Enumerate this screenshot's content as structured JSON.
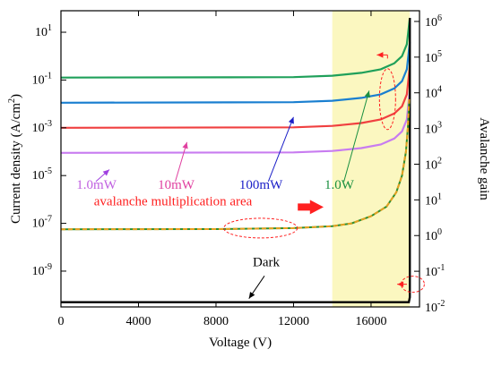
{
  "chart_data": {
    "type": "line",
    "xlabel": "Voltage (V)",
    "ylabel_left": "Current density (A/cm",
    "ylabel_left_sup": "2",
    "ylabel_left_close": ")",
    "ylabel_right": "Avalanche gain",
    "xlim": [
      0,
      18500
    ],
    "ylim_left_exp": [
      -10.5,
      1.9
    ],
    "ylim_right_exp": [
      -2,
      6.3
    ],
    "yscale": "log",
    "grid": false,
    "x_ticks": [
      0,
      4000,
      8000,
      12000,
      16000
    ],
    "x_tick_labels": [
      "0",
      "4000",
      "8000",
      "12000",
      "16000"
    ],
    "y_left_ticks": [
      {
        "base": "10",
        "exp": "1",
        "v": 1
      },
      {
        "base": "10",
        "exp": "-1",
        "v": -1
      },
      {
        "base": "10",
        "exp": "-3",
        "v": -3
      },
      {
        "base": "10",
        "exp": "-5",
        "v": -5
      },
      {
        "base": "10",
        "exp": "-7",
        "v": -7
      },
      {
        "base": "10",
        "exp": "-9",
        "v": -9
      }
    ],
    "y_right_ticks": [
      {
        "base": "10",
        "exp": "6",
        "v": 6
      },
      {
        "base": "10",
        "exp": "5",
        "v": 5
      },
      {
        "base": "10",
        "exp": "4",
        "v": 4
      },
      {
        "base": "10",
        "exp": "3",
        "v": 3
      },
      {
        "base": "10",
        "exp": "2",
        "v": 2
      },
      {
        "base": "10",
        "exp": "1",
        "v": 1
      },
      {
        "base": "10",
        "exp": "0",
        "v": 0
      },
      {
        "base": "10",
        "exp": "-1",
        "v": -1
      },
      {
        "base": "10",
        "exp": "-2",
        "v": -2
      }
    ],
    "shaded_region": {
      "x": [
        14000,
        18000
      ],
      "color": "#fbf7c0"
    },
    "series": [
      {
        "name": "1.0W",
        "color": "#1fa05a",
        "x": [
          0,
          12000,
          14000,
          15500,
          16500,
          17200,
          17600,
          17850,
          18000
        ],
        "y_exp": [
          -0.9,
          -0.88,
          -0.82,
          -0.7,
          -0.55,
          -0.3,
          0.0,
          0.5,
          1.6
        ]
      },
      {
        "name": "100mW",
        "color": "#1a7fd0",
        "x": [
          0,
          12000,
          14000,
          15500,
          16500,
          17200,
          17600,
          17850,
          18000
        ],
        "y_exp": [
          -1.95,
          -1.93,
          -1.87,
          -1.75,
          -1.6,
          -1.35,
          -1.05,
          -0.55,
          0.6
        ]
      },
      {
        "name": "10mW",
        "color": "#f04040",
        "x": [
          0,
          12000,
          14000,
          15500,
          16500,
          17200,
          17600,
          17850,
          18000
        ],
        "y_exp": [
          -3.0,
          -2.98,
          -2.92,
          -2.8,
          -2.65,
          -2.4,
          -2.1,
          -1.6,
          -0.4
        ]
      },
      {
        "name": "1.0mW",
        "color": "#c87cf0",
        "x": [
          0,
          12000,
          14000,
          15500,
          16500,
          17200,
          17600,
          17850,
          18000
        ],
        "y_exp": [
          -4.05,
          -4.03,
          -3.97,
          -3.85,
          -3.7,
          -3.45,
          -3.15,
          -2.65,
          -1.4
        ]
      },
      {
        "name": "Dark",
        "color": "#000000",
        "x": [
          0,
          17950,
          18000,
          18000
        ],
        "y_exp": [
          -10.3,
          -10.3,
          -10.1,
          1.6
        ]
      }
    ],
    "gain_curves": [
      {
        "color": "#2f8f2f",
        "dash": "",
        "x": [
          0,
          8000,
          12000,
          14000,
          15000,
          16000,
          16800,
          17300,
          17600,
          17800,
          17900,
          17970
        ],
        "y_exp": [
          -7.25,
          -7.24,
          -7.2,
          -7.12,
          -7.0,
          -6.7,
          -6.3,
          -5.7,
          -5.0,
          -4.0,
          -3.0,
          -1.8
        ]
      },
      {
        "color": "#e8a020",
        "dash": "5,3",
        "x": [
          0,
          8000,
          12000,
          14000,
          15000,
          16000,
          16800,
          17300,
          17600,
          17800,
          17900,
          17970
        ],
        "y_exp": [
          -7.25,
          -7.24,
          -7.2,
          -7.12,
          -7.0,
          -6.7,
          -6.3,
          -5.7,
          -5.0,
          -4.0,
          -3.0,
          -1.8
        ]
      }
    ],
    "annotations": [
      {
        "text": "1.0mW",
        "color": "#c060e0",
        "x": 800,
        "y_exp": -5.55
      },
      {
        "text": "10mW",
        "color": "#e040a0",
        "x": 5000,
        "y_exp": -5.55
      },
      {
        "text": "100mW",
        "color": "#1c20c8",
        "x": 9200,
        "y_exp": -5.55
      },
      {
        "text": "1.0W",
        "color": "#1a9040",
        "x": 13600,
        "y_exp": -5.55
      },
      {
        "text": "avalanche multiplication area",
        "color": "#ff2020",
        "x": 1700,
        "y_exp": -6.25
      },
      {
        "text": "Dark",
        "color": "#000000",
        "x": 9900,
        "y_exp": -8.8
      }
    ]
  }
}
